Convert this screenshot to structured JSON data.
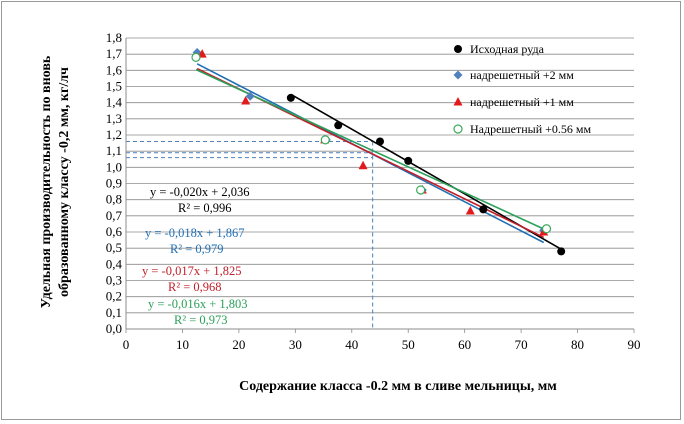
{
  "chart_data": {
    "type": "scatter",
    "xlabel": "Содержание класса -0.2 мм в сливе мельницы, мм",
    "ylabel": [
      "Удельная производительность по вновь",
      "образованному классу -0,2 мм,  кг/лч"
    ],
    "xlim": [
      0,
      90
    ],
    "ylim": [
      0,
      1.8
    ],
    "x_ticks": [
      "0",
      "10",
      "20",
      "30",
      "40",
      "50",
      "60",
      "70",
      "80",
      "90"
    ],
    "y_ticks": [
      "0,0",
      "0,1",
      "0,2",
      "0,3",
      "0,4",
      "0,5",
      "0,6",
      "0,7",
      "0,8",
      "0,9",
      "1,0",
      "1,1",
      "1,2",
      "1,3",
      "1,4",
      "1,5",
      "1,6",
      "1,7",
      "1,8"
    ],
    "grid": true,
    "legend_position": "top-right",
    "reference_lines": {
      "x": 43.7,
      "y": [
        1.16,
        1.09,
        1.06
      ]
    },
    "series": [
      {
        "name": "Исходная руда",
        "color": "#000000",
        "marker": "circle",
        "points": [
          [
            29.2,
            1.43
          ],
          [
            37.6,
            1.26
          ],
          [
            45.0,
            1.16
          ],
          [
            50.0,
            1.04
          ],
          [
            63.3,
            0.74
          ],
          [
            77.1,
            0.48
          ]
        ],
        "trend": {
          "slope": -0.02,
          "intercept": 2.036,
          "x_range": [
            29.2,
            77.1
          ]
        },
        "equation": "y = -0,020x + 2,036",
        "r2": "R² = 0,996"
      },
      {
        "name": "надрешетный +2 мм",
        "color": "#4f81bd",
        "line_color": "#1f6fb5",
        "marker": "diamond",
        "points": [
          [
            12.6,
            1.71
          ],
          [
            22.0,
            1.44
          ],
          [
            35.5,
            1.17
          ],
          [
            52.5,
            0.86
          ],
          [
            74.0,
            0.61
          ]
        ],
        "trend": {
          "slope": -0.018,
          "intercept": 1.867,
          "x_range": [
            12.6,
            74.0
          ]
        },
        "equation": "y = -0,018x + 1,867",
        "r2": "R² = 0,979"
      },
      {
        "name": "надрешетный +1 мм",
        "color": "#e31a1c",
        "line_color": "#c0202a",
        "marker": "triangle",
        "points": [
          [
            13.5,
            1.7
          ],
          [
            21.2,
            1.41
          ],
          [
            35.2,
            1.17
          ],
          [
            42.0,
            1.01
          ],
          [
            52.5,
            0.86
          ],
          [
            61.0,
            0.73
          ],
          [
            74.0,
            0.6
          ]
        ],
        "trend": {
          "slope": -0.017,
          "intercept": 1.825,
          "x_range": [
            12.6,
            74.0
          ]
        },
        "equation": "y = -0,017x + 1,825",
        "r2": "R² = 0,968"
      },
      {
        "name": "Надрешетный +0.56 мм",
        "color": "#3aaa5a",
        "line_color": "#2ca05a",
        "marker": "circle-open",
        "points": [
          [
            12.4,
            1.68
          ],
          [
            35.3,
            1.17
          ],
          [
            52.2,
            0.86
          ],
          [
            74.5,
            0.62
          ]
        ],
        "trend": {
          "slope": -0.016,
          "intercept": 1.803,
          "x_range": [
            12.4,
            74.5
          ]
        },
        "equation": "y = -0,016x + 1,803",
        "r2": "R² = 0,973"
      }
    ]
  }
}
